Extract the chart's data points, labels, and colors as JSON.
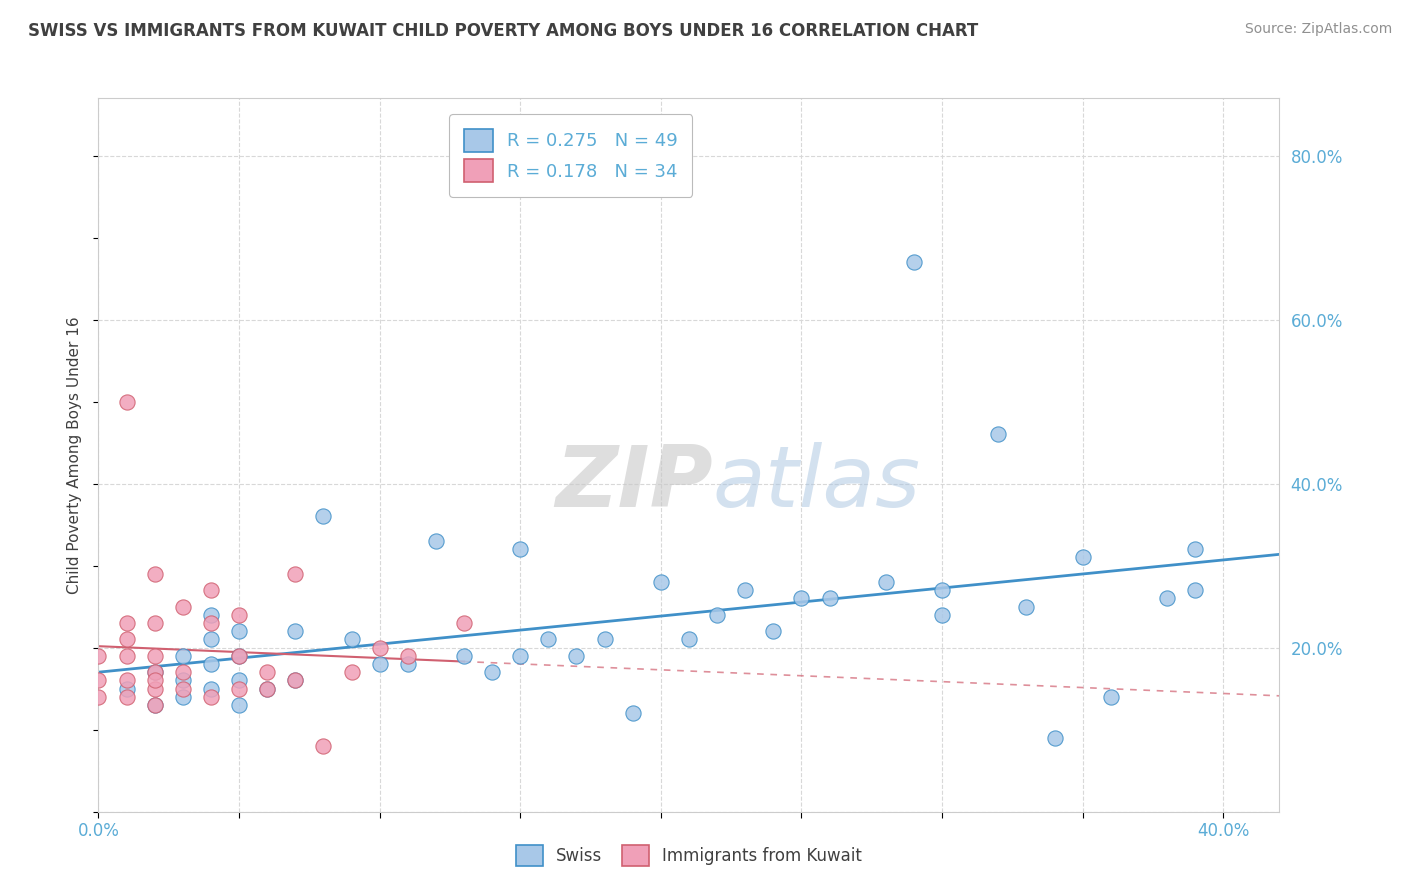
{
  "title": "SWISS VS IMMIGRANTS FROM KUWAIT CHILD POVERTY AMONG BOYS UNDER 16 CORRELATION CHART",
  "source": "Source: ZipAtlas.com",
  "watermark": "ZIPatlas",
  "ylabel": "Child Poverty Among Boys Under 16",
  "xlim": [
    0.0,
    0.42
  ],
  "ylim": [
    0.0,
    0.87
  ],
  "x_ticks": [
    0.0,
    0.05,
    0.1,
    0.15,
    0.2,
    0.25,
    0.3,
    0.35,
    0.4
  ],
  "y_ticks": [
    0.0,
    0.2,
    0.4,
    0.6,
    0.8
  ],
  "legend1_r": "0.275",
  "legend1_n": "49",
  "legend2_r": "0.178",
  "legend2_n": "34",
  "swiss_color": "#a8c8e8",
  "kuwait_color": "#f0a0b8",
  "swiss_line_color": "#4090c8",
  "kuwait_line_color": "#d06070",
  "title_color": "#404040",
  "source_color": "#909090",
  "tick_color": "#5bacd6",
  "swiss_scatter_x": [
    0.01,
    0.02,
    0.02,
    0.03,
    0.03,
    0.03,
    0.04,
    0.04,
    0.04,
    0.04,
    0.05,
    0.05,
    0.05,
    0.05,
    0.06,
    0.07,
    0.07,
    0.08,
    0.09,
    0.1,
    0.11,
    0.12,
    0.13,
    0.14,
    0.15,
    0.15,
    0.16,
    0.17,
    0.18,
    0.19,
    0.2,
    0.21,
    0.22,
    0.23,
    0.24,
    0.25,
    0.26,
    0.28,
    0.29,
    0.3,
    0.3,
    0.32,
    0.33,
    0.34,
    0.35,
    0.36,
    0.38,
    0.39,
    0.39
  ],
  "swiss_scatter_y": [
    0.15,
    0.13,
    0.17,
    0.14,
    0.16,
    0.19,
    0.15,
    0.18,
    0.21,
    0.24,
    0.13,
    0.16,
    0.19,
    0.22,
    0.15,
    0.16,
    0.22,
    0.36,
    0.21,
    0.18,
    0.18,
    0.33,
    0.19,
    0.17,
    0.32,
    0.19,
    0.21,
    0.19,
    0.21,
    0.12,
    0.28,
    0.21,
    0.24,
    0.27,
    0.22,
    0.26,
    0.26,
    0.28,
    0.67,
    0.27,
    0.24,
    0.46,
    0.25,
    0.09,
    0.31,
    0.14,
    0.26,
    0.32,
    0.27
  ],
  "kuwait_scatter_x": [
    0.0,
    0.0,
    0.0,
    0.01,
    0.01,
    0.01,
    0.01,
    0.01,
    0.01,
    0.02,
    0.02,
    0.02,
    0.02,
    0.02,
    0.02,
    0.02,
    0.03,
    0.03,
    0.03,
    0.04,
    0.04,
    0.04,
    0.05,
    0.05,
    0.05,
    0.06,
    0.06,
    0.07,
    0.07,
    0.08,
    0.09,
    0.1,
    0.11,
    0.13
  ],
  "kuwait_scatter_y": [
    0.14,
    0.16,
    0.19,
    0.14,
    0.16,
    0.19,
    0.21,
    0.5,
    0.23,
    0.13,
    0.15,
    0.17,
    0.19,
    0.23,
    0.29,
    0.16,
    0.15,
    0.17,
    0.25,
    0.14,
    0.23,
    0.27,
    0.15,
    0.19,
    0.24,
    0.15,
    0.17,
    0.16,
    0.29,
    0.08,
    0.17,
    0.2,
    0.19,
    0.23
  ],
  "background_color": "#ffffff",
  "grid_color": "#d8d8d8"
}
